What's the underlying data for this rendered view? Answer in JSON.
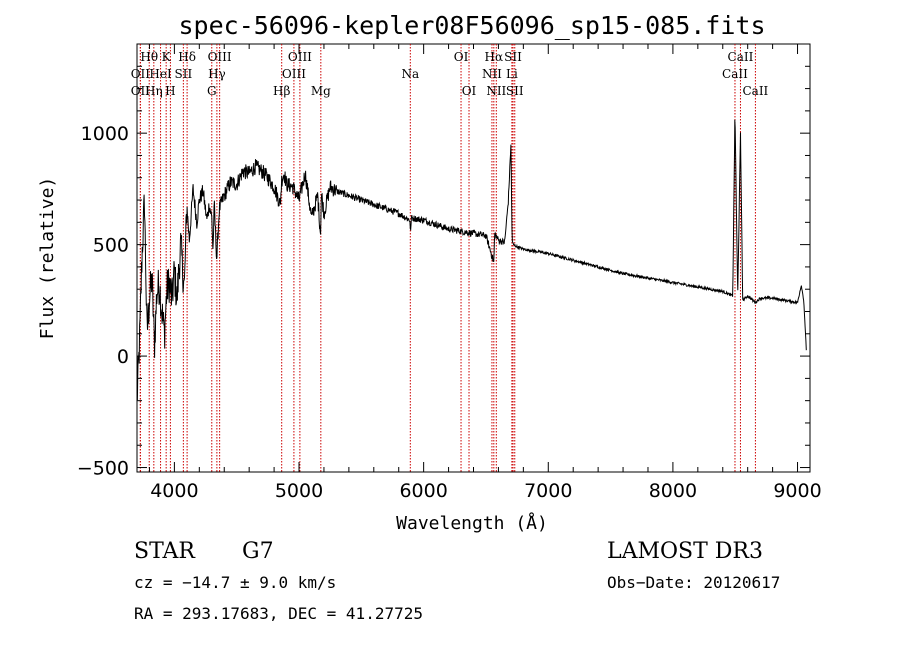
{
  "chart_data": {
    "type": "line",
    "title": "spec-56096-kepler08F56096_sp15-085.fits",
    "xlabel": "Wavelength (Å)",
    "ylabel": "Flux (relative)",
    "xlim": [
      3700,
      9100
    ],
    "ylim": [
      -520,
      1400
    ],
    "x_ticks": [
      4000,
      5000,
      6000,
      7000,
      8000,
      9000
    ],
    "y_ticks": [
      -500,
      0,
      500,
      1000
    ],
    "x_tick_labels": [
      "4000",
      "5000",
      "6000",
      "7000",
      "8000",
      "9000"
    ],
    "y_tick_labels": [
      "−500",
      "0",
      "500",
      "1000"
    ],
    "line_color": "#000000",
    "marker_color": "#cc0000",
    "spectrum": {
      "wavelengths": [
        3700,
        3720,
        3740,
        3760,
        3780,
        3800,
        3820,
        3840,
        3860,
        3880,
        3900,
        3920,
        3940,
        3960,
        3980,
        4000,
        4020,
        4050,
        4080,
        4100,
        4120,
        4150,
        4180,
        4200,
        4230,
        4260,
        4280,
        4300,
        4310,
        4320,
        4340,
        4360,
        4400,
        4450,
        4500,
        4550,
        4600,
        4650,
        4700,
        4750,
        4800,
        4850,
        4861,
        4880,
        4900,
        4950,
        5000,
        5050,
        5100,
        5150,
        5172,
        5180,
        5200,
        5250,
        5300,
        5400,
        5500,
        5600,
        5700,
        5800,
        5890,
        5895,
        5900,
        6000,
        6100,
        6200,
        6300,
        6400,
        6500,
        6563,
        6570,
        6600,
        6650,
        6680,
        6700,
        6710,
        6720,
        6750,
        6800,
        6900,
        7000,
        7200,
        7400,
        7600,
        7800,
        8000,
        8200,
        8400,
        8480,
        8498,
        8520,
        8542,
        8560,
        8600,
        8662,
        8700,
        8800,
        8900,
        9000,
        9030,
        9050,
        9070
      ],
      "flux": [
        -200,
        50,
        450,
        700,
        100,
        260,
        350,
        50,
        290,
        320,
        200,
        100,
        300,
        330,
        250,
        380,
        250,
        500,
        300,
        680,
        520,
        750,
        600,
        700,
        740,
        610,
        680,
        620,
        470,
        680,
        430,
        660,
        720,
        780,
        770,
        830,
        820,
        850,
        830,
        800,
        760,
        680,
        790,
        820,
        770,
        760,
        700,
        820,
        620,
        720,
        550,
        730,
        640,
        760,
        740,
        720,
        700,
        680,
        660,
        640,
        610,
        540,
        620,
        610,
        590,
        570,
        560,
        550,
        540,
        420,
        550,
        520,
        510,
        700,
        950,
        520,
        500,
        490,
        480,
        470,
        460,
        430,
        400,
        370,
        350,
        330,
        310,
        290,
        270,
        1100,
        260,
        1000,
        250,
        270,
        240,
        260,
        260,
        250,
        240,
        320,
        250,
        30
      ]
    },
    "spectral_lines": [
      {
        "name": "Hθ",
        "wavelength": 3798,
        "row": 1
      },
      {
        "name": "OII",
        "wavelength": 3727,
        "row": 2
      },
      {
        "name": "OII",
        "wavelength": 3727,
        "row": 3
      },
      {
        "name": "Hη",
        "wavelength": 3835,
        "row": 3
      },
      {
        "name": "HeI",
        "wavelength": 3889,
        "row": 2
      },
      {
        "name": "K",
        "wavelength": 3934,
        "row": 1
      },
      {
        "name": "H",
        "wavelength": 3968,
        "row": 3
      },
      {
        "name": "SII",
        "wavelength": 4072,
        "row": 2
      },
      {
        "name": "Hδ",
        "wavelength": 4102,
        "row": 1
      },
      {
        "name": "G",
        "wavelength": 4300,
        "row": 3
      },
      {
        "name": "Hγ",
        "wavelength": 4341,
        "row": 2
      },
      {
        "name": "OIII",
        "wavelength": 4363,
        "row": 1
      },
      {
        "name": "Hβ",
        "wavelength": 4861,
        "row": 3
      },
      {
        "name": "OIII",
        "wavelength": 4959,
        "row": 2
      },
      {
        "name": "OIII",
        "wavelength": 5007,
        "row": 1
      },
      {
        "name": "Mg",
        "wavelength": 5175,
        "row": 3
      },
      {
        "name": "Na",
        "wavelength": 5893,
        "row": 2
      },
      {
        "name": "OI",
        "wavelength": 6300,
        "row": 1
      },
      {
        "name": "OI",
        "wavelength": 6364,
        "row": 3
      },
      {
        "name": "NII",
        "wavelength": 6548,
        "row": 2
      },
      {
        "name": "NII",
        "wavelength": 6583,
        "row": 3
      },
      {
        "name": "Hα",
        "wavelength": 6563,
        "row": 1
      },
      {
        "name": "Li",
        "wavelength": 6708,
        "row": 2
      },
      {
        "name": "SII",
        "wavelength": 6717,
        "row": 1
      },
      {
        "name": "SII",
        "wavelength": 6731,
        "row": 3
      },
      {
        "name": "CaII",
        "wavelength": 8498,
        "row": 2
      },
      {
        "name": "CaII",
        "wavelength": 8542,
        "row": 1
      },
      {
        "name": "CaII",
        "wavelength": 8662,
        "row": 3
      }
    ]
  },
  "info": {
    "class_label": "STAR",
    "subclass": "G7",
    "survey": "LAMOST DR3",
    "cz": "cz = −14.7 ± 9.0 km/s",
    "obs_date": "Obs−Date: 20120617",
    "coords": "RA = 293.17683, DEC =  41.27725"
  }
}
